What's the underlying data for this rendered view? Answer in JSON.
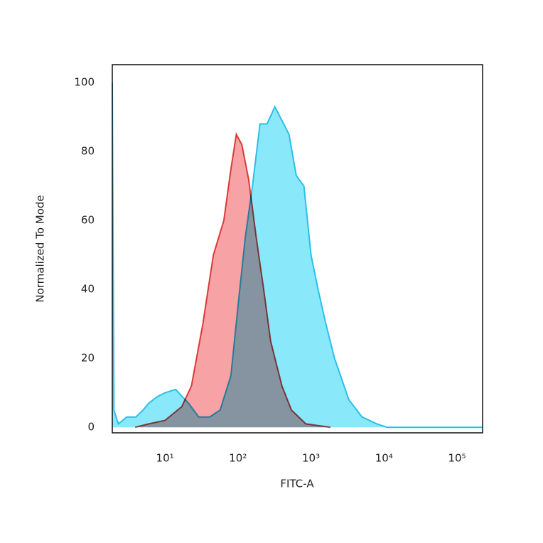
{
  "chart_data": {
    "type": "area",
    "x_label": "FITC-A",
    "y_label": "Normalized To Mode",
    "x_scale": "log",
    "xlim": [
      1.9,
      224000
    ],
    "ylim": [
      -1.6,
      105.2
    ],
    "xticks": [
      {
        "value": 10,
        "label": "10¹"
      },
      {
        "value": 100,
        "label": "10²"
      },
      {
        "value": 1000,
        "label": "10³"
      },
      {
        "value": 10000,
        "label": "10⁴"
      },
      {
        "value": 100000,
        "label": "10⁵"
      }
    ],
    "yticks": [
      0,
      20,
      40,
      60,
      80,
      100
    ],
    "grid": false,
    "series": [
      {
        "color": "#29c0e8",
        "fill": "#8ae8fb",
        "x": [
          1.9,
          2.0,
          2.3,
          3,
          4,
          5,
          6,
          8,
          10,
          14,
          21,
          29,
          41,
          57,
          80,
          100,
          126,
          158,
          200,
          250,
          320,
          400,
          500,
          630,
          800,
          1000,
          1250,
          1600,
          2100,
          3300,
          5000,
          8000,
          11000,
          224000
        ],
        "values": [
          100,
          5,
          1,
          3,
          3,
          5,
          7,
          9,
          10,
          11,
          7,
          3,
          3,
          5,
          15,
          35,
          55,
          70,
          88,
          88,
          93,
          89,
          85,
          73,
          70,
          50,
          40,
          30,
          20,
          8,
          3,
          1,
          0,
          0
        ]
      },
      {
        "color": "#e04848",
        "fill": "#f7a3a5",
        "x": [
          3.9,
          6,
          10,
          17,
          23,
          33,
          46,
          64,
          80,
          95,
          113,
          140,
          178,
          225,
          280,
          400,
          540,
          850,
          1850
        ],
        "values": [
          0,
          1,
          2,
          6,
          12,
          30,
          50,
          60,
          75,
          85,
          82,
          72,
          55,
          40,
          25,
          12,
          5,
          1,
          0
        ]
      }
    ]
  }
}
